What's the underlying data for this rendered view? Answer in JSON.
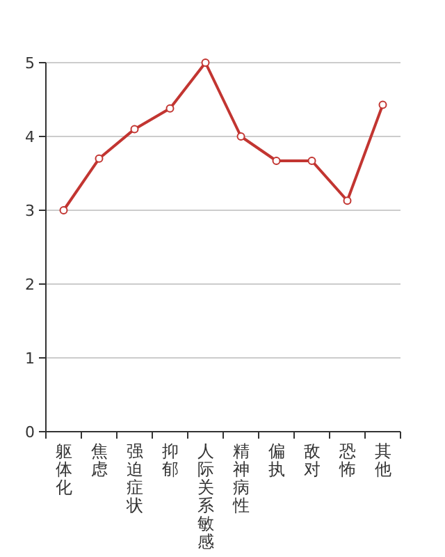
{
  "chart_data": {
    "type": "line",
    "categories": [
      "躯体化",
      "焦虑",
      "强迫症状",
      "抑郁",
      "人际关系敏感",
      "精神病性",
      "偏执",
      "敌对",
      "恐怖",
      "其他"
    ],
    "series": [
      {
        "color": "#c23531",
        "values": [
          3.0,
          3.7,
          4.1,
          4.38,
          5.0,
          4.0,
          3.67,
          3.67,
          3.13,
          4.43
        ]
      }
    ],
    "ylim": [
      0,
      5
    ],
    "yticks": [
      0,
      1,
      2,
      3,
      4,
      5
    ],
    "grid": "y",
    "marker": "circle",
    "line_style": "solid"
  }
}
